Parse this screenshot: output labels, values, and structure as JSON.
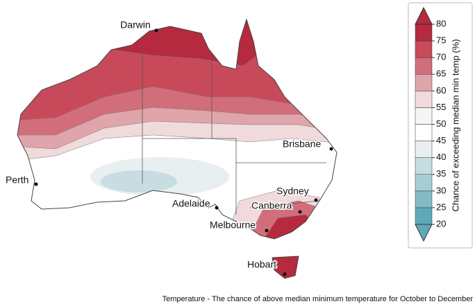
{
  "map": {
    "cities": [
      "Darwin",
      "Perth",
      "Adelaide",
      "Brisbane",
      "Sydney",
      "Canberra",
      "Melbourne",
      "Hobart"
    ],
    "colorbar": {
      "label": "Chance of exceeding median min temp (%)",
      "ticks": [
        20,
        25,
        30,
        35,
        40,
        45,
        50,
        55,
        60,
        65,
        70,
        75,
        80
      ],
      "colors": [
        "#5fa9b8",
        "#82bcc7",
        "#a6cdd4",
        "#c7dde1",
        "#e8eff1",
        "#ffffff",
        "#f6f4f4",
        "#f0dadc",
        "#e0a4ab",
        "#d26e7b",
        "#c84a5a",
        "#b52a3e"
      ]
    },
    "caption": "Temperature - The chance of above median minimum temperature for October to December"
  }
}
